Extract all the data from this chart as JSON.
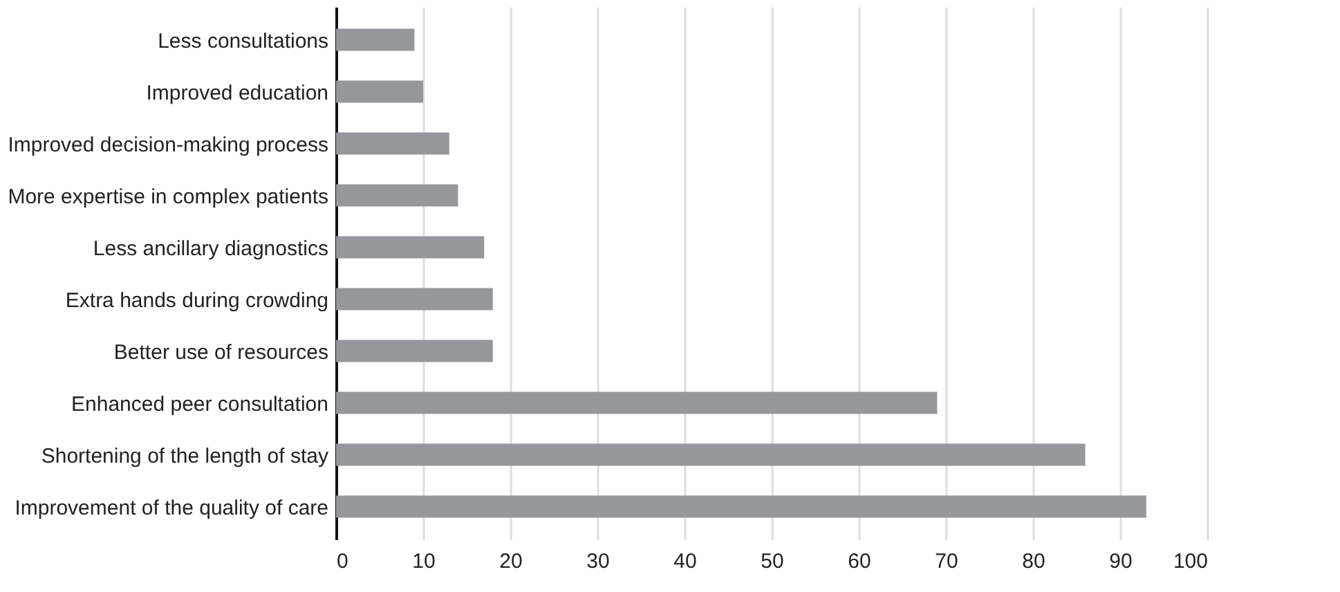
{
  "chart_data": {
    "type": "bar",
    "orientation": "horizontal",
    "categories": [
      "Less consultations",
      "Improved education",
      "Improved decision-making process",
      "More expertise in complex patients",
      "Less ancillary diagnostics",
      "Extra hands during crowding",
      "Better use of resources",
      "Enhanced peer consultation",
      "Shortening of the length of stay",
      "Improvement of the quality of care"
    ],
    "values": [
      9,
      10,
      13,
      14,
      17,
      18,
      18,
      69,
      86,
      93
    ],
    "color": "#96979b",
    "xlim": [
      0,
      100
    ],
    "xticks": [
      0,
      10,
      20,
      30,
      40,
      50,
      60,
      70,
      80,
      90,
      100
    ],
    "grid": "x"
  }
}
